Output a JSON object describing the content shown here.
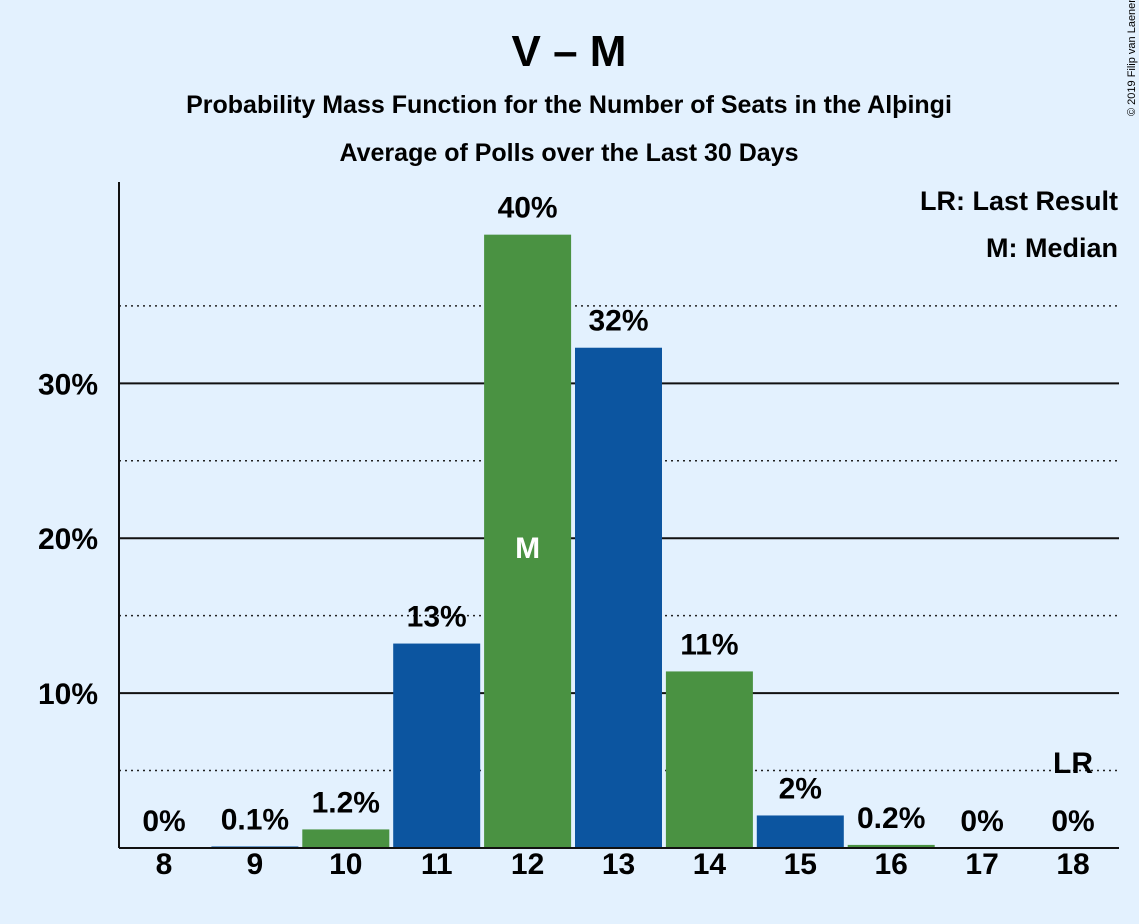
{
  "copyright": "© 2019 Filip van Laenen",
  "chart_data": {
    "type": "bar",
    "title": "V – M",
    "subtitle": "Probability Mass Function for the Number of Seats in the Alþingi",
    "subtitle2": "Average of Polls over the Last 30 Days",
    "categories": [
      "8",
      "9",
      "10",
      "11",
      "12",
      "13",
      "14",
      "15",
      "16",
      "17",
      "18"
    ],
    "values": [
      0,
      0.1,
      1.2,
      13.2,
      39.6,
      32.3,
      11.4,
      2.1,
      0.2,
      0,
      0
    ],
    "labels": [
      "0%",
      "0.1%",
      "1.2%",
      "13%",
      "40%",
      "32%",
      "11%",
      "2%",
      "0.2%",
      "0%",
      "0%"
    ],
    "bar_colors": [
      "#4a9242",
      "#0c55a0",
      "#4a9242",
      "#0c55a0",
      "#4a9242",
      "#0c55a0",
      "#4a9242",
      "#0c55a0",
      "#4a9242",
      "#0c55a0",
      "#4a9242"
    ],
    "ylim": [
      0,
      43
    ],
    "y_ticks": [
      10,
      20,
      30
    ],
    "y_tick_labels": [
      "10%",
      "20%",
      "30%"
    ],
    "y_minor_ticks": [
      5,
      15,
      25,
      35
    ],
    "median_category": "12",
    "median_marker": "M",
    "last_result_category": "18",
    "last_result_marker": "LR",
    "legend": [
      "LR: Last Result",
      "M: Median"
    ],
    "legend_position": "top-right",
    "grid": true
  }
}
